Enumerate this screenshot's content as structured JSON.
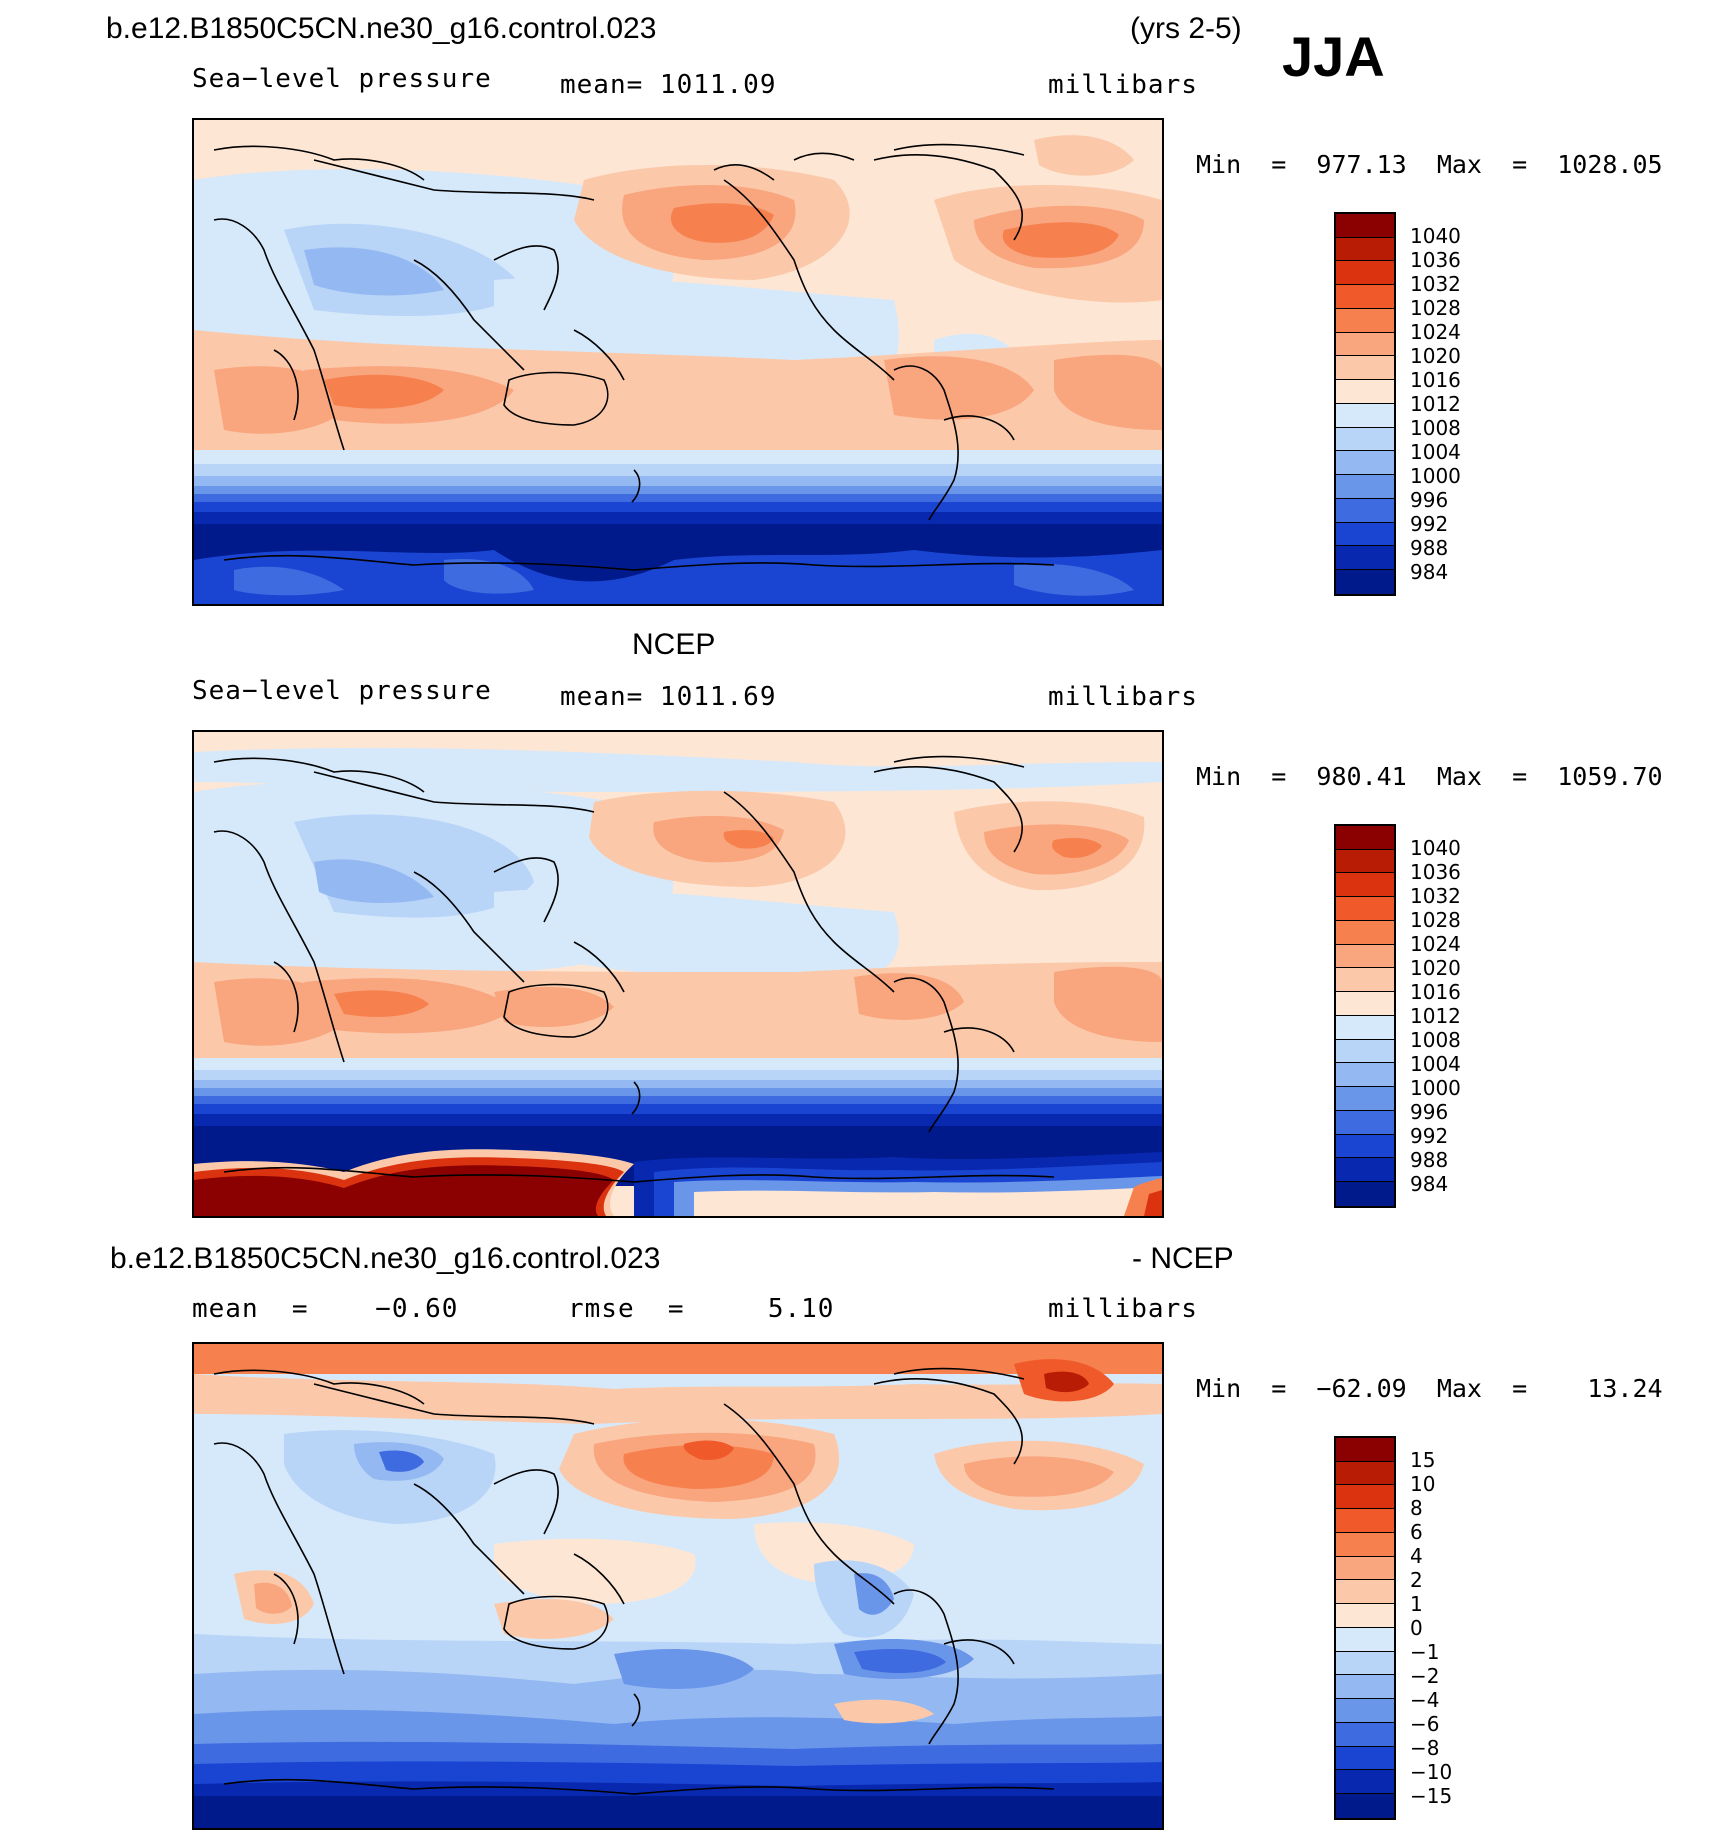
{
  "header": {
    "case_name": "b.e12.B1850C5CN.ne30_g16.control.023",
    "years": "(yrs 2-5)",
    "season": "JJA"
  },
  "panels": [
    {
      "id": "model",
      "title": "",
      "variable": "Sea−level pressure",
      "stat": "mean=  1011.09",
      "units": "millibars",
      "minmax": "Min  =  977.13  Max  =  1028.05",
      "colorbar_labels": [
        "1040",
        "1036",
        "1032",
        "1028",
        "1024",
        "1020",
        "1016",
        "1012",
        "1008",
        "1004",
        "1000",
        "996",
        "992",
        "988",
        "984"
      ]
    },
    {
      "id": "obs",
      "title": "NCEP",
      "variable": "Sea−level pressure",
      "stat": "mean=  1011.69",
      "units": "millibars",
      "minmax": "Min  =  980.41  Max  =  1059.70",
      "colorbar_labels": [
        "1040",
        "1036",
        "1032",
        "1028",
        "1024",
        "1020",
        "1016",
        "1012",
        "1008",
        "1004",
        "1000",
        "996",
        "992",
        "988",
        "984"
      ]
    },
    {
      "id": "diff",
      "title_left": "b.e12.B1850C5CN.ne30_g16.control.023",
      "title_right": "- NCEP",
      "stat_mean": "mean  =    −0.60",
      "stat_rmse": "rmse  =     5.10",
      "units": "millibars",
      "minmax": "Min  =  −62.09  Max  =    13.24",
      "colorbar_labels": [
        "15",
        "10",
        "8",
        "6",
        "4",
        "2",
        "1",
        "0",
        "−1",
        "−2",
        "−4",
        "−6",
        "−8",
        "−10",
        "−15"
      ]
    }
  ],
  "colorbar_colors": [
    "#8b0000",
    "#b81c05",
    "#db3310",
    "#f05a2a",
    "#f6814f",
    "#f9a57e",
    "#fbc9aa",
    "#fde6d4",
    "#d6e9fb",
    "#b8d4f7",
    "#94b8f2",
    "#6a96ea",
    "#3e6be0",
    "#1a45d2",
    "#0828b0",
    "#001a8c"
  ],
  "map_colors": {
    "deep_blue": "#001a8c",
    "blue1": "#0828b0",
    "blue2": "#1a45d2",
    "blue3": "#3e6be0",
    "blue4": "#6a96ea",
    "blue5": "#94b8f2",
    "blue6": "#b8d4f7",
    "blue7": "#d6e9fb",
    "cream": "#fde6d4",
    "peach1": "#fbc9aa",
    "peach2": "#f9a57e",
    "orange1": "#f6814f",
    "orange2": "#f05a2a",
    "red1": "#db3310",
    "dark_red": "#8b0000"
  }
}
